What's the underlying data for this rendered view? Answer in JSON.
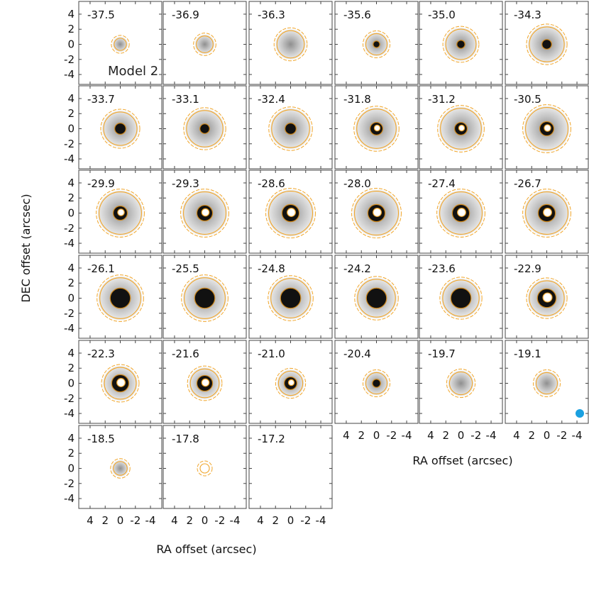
{
  "chart_data": {
    "type": "channel-map-grid",
    "title": "",
    "model_label": "Model 2",
    "xlabel": "RA offset (arcsec)",
    "ylabel": "DEC offset (arcsec)",
    "xlim": [
      5.5,
      -5.5
    ],
    "ylim": [
      -5.5,
      5.5
    ],
    "y_ticks": [
      {
        "value": 4,
        "label": "4"
      },
      {
        "value": 2,
        "label": "2"
      },
      {
        "value": 0,
        "label": "0"
      },
      {
        "value": -2,
        "label": "-2"
      },
      {
        "value": -4,
        "label": "-4"
      }
    ],
    "x_ticks": [
      {
        "value": 4,
        "label": "4"
      },
      {
        "value": 2,
        "label": "2"
      },
      {
        "value": 0,
        "label": "0"
      },
      {
        "value": -2,
        "label": "-2"
      },
      {
        "value": -4,
        "label": "-4"
      }
    ],
    "beam_color": "#1aa0e0",
    "contour_color": "#f0a52a",
    "panels": [
      {
        "velocity": "-37.5",
        "outer": 1.0,
        "halo": 1.0,
        "core": 0.0
      },
      {
        "velocity": "-36.9",
        "outer": 1.3,
        "halo": 1.3,
        "core": 0.0
      },
      {
        "velocity": "-36.3",
        "outer": 2.0,
        "halo": 2.0,
        "core": 0.0
      },
      {
        "velocity": "-35.6",
        "outer": 1.6,
        "halo": 1.6,
        "core": 0.3
      },
      {
        "velocity": "-35.0",
        "outer": 2.2,
        "halo": 2.2,
        "core": 0.4
      },
      {
        "velocity": "-34.3",
        "outer": 2.5,
        "halo": 2.5,
        "core": 0.5
      },
      {
        "velocity": "-33.7",
        "outer": 2.4,
        "halo": 2.4,
        "core": 0.6
      },
      {
        "velocity": "-33.1",
        "outer": 2.6,
        "halo": 2.6,
        "core": 0.5
      },
      {
        "velocity": "-32.4",
        "outer": 2.7,
        "halo": 2.7,
        "core": 0.6
      },
      {
        "velocity": "-31.8",
        "outer": 2.8,
        "halo": 2.8,
        "core": 0.7
      },
      {
        "velocity": "-31.2",
        "outer": 2.9,
        "halo": 2.9,
        "core": 0.7
      },
      {
        "velocity": "-30.5",
        "outer": 3.0,
        "halo": 3.0,
        "core": 0.8
      },
      {
        "velocity": "-29.9",
        "outer": 3.0,
        "halo": 3.0,
        "core": 0.8
      },
      {
        "velocity": "-29.3",
        "outer": 3.0,
        "halo": 3.0,
        "core": 0.9
      },
      {
        "velocity": "-28.6",
        "outer": 3.1,
        "halo": 3.1,
        "core": 1.0
      },
      {
        "velocity": "-28.0",
        "outer": 3.1,
        "halo": 3.1,
        "core": 1.0
      },
      {
        "velocity": "-27.4",
        "outer": 3.0,
        "halo": 3.0,
        "core": 1.0
      },
      {
        "velocity": "-26.7",
        "outer": 3.0,
        "halo": 3.0,
        "core": 1.0
      },
      {
        "velocity": "-26.1",
        "outer": 2.9,
        "halo": 2.9,
        "core": 1.2
      },
      {
        "velocity": "-25.5",
        "outer": 2.9,
        "halo": 2.9,
        "core": 1.2
      },
      {
        "velocity": "-24.8",
        "outer": 2.8,
        "halo": 2.8,
        "core": 1.2
      },
      {
        "velocity": "-24.2",
        "outer": 2.7,
        "halo": 2.7,
        "core": 1.2
      },
      {
        "velocity": "-23.6",
        "outer": 2.6,
        "halo": 2.6,
        "core": 1.2
      },
      {
        "velocity": "-22.9",
        "outer": 2.5,
        "halo": 2.5,
        "core": 1.1
      },
      {
        "velocity": "-22.3",
        "outer": 2.3,
        "halo": 2.3,
        "core": 1.0
      },
      {
        "velocity": "-21.6",
        "outer": 2.1,
        "halo": 2.1,
        "core": 0.9
      },
      {
        "velocity": "-21.0",
        "outer": 1.8,
        "halo": 1.8,
        "core": 0.7
      },
      {
        "velocity": "-20.4",
        "outer": 1.6,
        "halo": 1.6,
        "core": 0.4
      },
      {
        "velocity": "-19.7",
        "outer": 1.7,
        "halo": 1.7,
        "core": 0.0
      },
      {
        "velocity": "-19.1",
        "outer": 1.6,
        "halo": 1.6,
        "core": 0.0
      },
      {
        "velocity": "-18.5",
        "outer": 1.1,
        "halo": 1.1,
        "core": 0.0
      },
      {
        "velocity": "-17.8",
        "outer": 0.8,
        "halo": 0.0,
        "core": 0.0
      },
      {
        "velocity": "-17.2",
        "outer": 0.0,
        "halo": 0.0,
        "core": 0.0
      }
    ]
  }
}
